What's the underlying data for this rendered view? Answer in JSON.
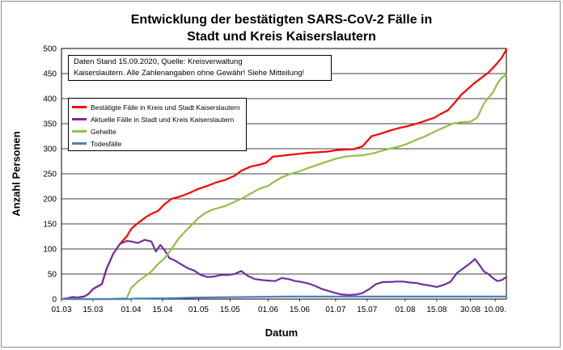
{
  "chart_data": {
    "type": "line",
    "title_line1": "Entwicklung der bestätigten SARS-CoV-2 Fälle in",
    "title_line2": "Stadt und Kreis Kaiserslautern",
    "xlabel": "Datum",
    "ylabel": "Anzahl Personen",
    "note_line1": "Daten Stand 15.09.2020, Quelle: Kreisverwaltung",
    "note_line2": "Kaiserslautern. Alle Zahlenangaben ohne Gewähr! Siehe Mitteilung!",
    "ylim": [
      0,
      500
    ],
    "yticks": [
      "0",
      "50",
      "100",
      "150",
      "200",
      "250",
      "300",
      "350",
      "400",
      "450",
      "500"
    ],
    "x_ticks": [
      {
        "label": "01.03",
        "day": 0
      },
      {
        "label": "15.03",
        "day": 14
      },
      {
        "label": "01.04",
        "day": 31
      },
      {
        "label": "15.04",
        "day": 45
      },
      {
        "label": "01.05",
        "day": 61
      },
      {
        "label": "15.05",
        "day": 75
      },
      {
        "label": "01.06",
        "day": 92
      },
      {
        "label": "15.06",
        "day": 106
      },
      {
        "label": "01.07",
        "day": 122
      },
      {
        "label": "15.07",
        "day": 136
      },
      {
        "label": "01.08",
        "day": 153
      },
      {
        "label": "15.08",
        "day": 167
      },
      {
        "label": "30.08",
        "day": 182
      },
      {
        "label": "10.09.",
        "day": 193
      }
    ],
    "x_days_max": 198,
    "grid": "horizontal",
    "legend_position": "top-left",
    "series": [
      {
        "name": "Bestätigte Fälle in Kreis und Stadt Kaiserslautern",
        "color": "#ff0000",
        "points": [
          [
            0,
            0
          ],
          [
            3,
            2
          ],
          [
            5,
            4
          ],
          [
            7,
            3
          ],
          [
            10,
            5
          ],
          [
            12,
            10
          ],
          [
            14,
            20
          ],
          [
            16,
            25
          ],
          [
            18,
            30
          ],
          [
            20,
            60
          ],
          [
            23,
            90
          ],
          [
            26,
            110
          ],
          [
            29,
            125
          ],
          [
            31,
            140
          ],
          [
            33,
            148
          ],
          [
            35,
            155
          ],
          [
            38,
            165
          ],
          [
            40,
            170
          ],
          [
            43,
            176
          ],
          [
            46,
            190
          ],
          [
            49,
            200
          ],
          [
            53,
            205
          ],
          [
            57,
            212
          ],
          [
            61,
            220
          ],
          [
            65,
            226
          ],
          [
            69,
            233
          ],
          [
            73,
            238
          ],
          [
            77,
            246
          ],
          [
            80,
            256
          ],
          [
            84,
            264
          ],
          [
            88,
            268
          ],
          [
            91,
            272
          ],
          [
            94,
            284
          ],
          [
            98,
            286
          ],
          [
            102,
            288
          ],
          [
            106,
            290
          ],
          [
            110,
            292
          ],
          [
            114,
            293
          ],
          [
            118,
            294
          ],
          [
            122,
            297
          ],
          [
            126,
            298
          ],
          [
            130,
            299
          ],
          [
            134,
            305
          ],
          [
            138,
            325
          ],
          [
            142,
            330
          ],
          [
            146,
            336
          ],
          [
            150,
            341
          ],
          [
            154,
            345
          ],
          [
            158,
            350
          ],
          [
            162,
            356
          ],
          [
            166,
            362
          ],
          [
            169,
            370
          ],
          [
            172,
            377
          ],
          [
            175,
            392
          ],
          [
            178,
            408
          ],
          [
            181,
            420
          ],
          [
            184,
            432
          ],
          [
            187,
            442
          ],
          [
            190,
            452
          ],
          [
            193,
            466
          ],
          [
            196,
            482
          ],
          [
            198,
            498
          ]
        ]
      },
      {
        "name": "Aktuelle Fälle in Stadt und Kreis Kaiserslautern",
        "color": "#7030a0",
        "points": [
          [
            0,
            0
          ],
          [
            3,
            2
          ],
          [
            5,
            4
          ],
          [
            7,
            3
          ],
          [
            10,
            5
          ],
          [
            12,
            10
          ],
          [
            14,
            20
          ],
          [
            16,
            25
          ],
          [
            18,
            30
          ],
          [
            20,
            60
          ],
          [
            23,
            90
          ],
          [
            26,
            110
          ],
          [
            29,
            116
          ],
          [
            31,
            115
          ],
          [
            34,
            112
          ],
          [
            37,
            118
          ],
          [
            40,
            115
          ],
          [
            42,
            95
          ],
          [
            44,
            108
          ],
          [
            46,
            97
          ],
          [
            48,
            82
          ],
          [
            50,
            78
          ],
          [
            53,
            70
          ],
          [
            56,
            62
          ],
          [
            59,
            57
          ],
          [
            62,
            48
          ],
          [
            65,
            44
          ],
          [
            68,
            45
          ],
          [
            71,
            48
          ],
          [
            74,
            48
          ],
          [
            77,
            50
          ],
          [
            80,
            56
          ],
          [
            83,
            46
          ],
          [
            86,
            40
          ],
          [
            89,
            38
          ],
          [
            92,
            37
          ],
          [
            95,
            36
          ],
          [
            98,
            42
          ],
          [
            101,
            40
          ],
          [
            104,
            36
          ],
          [
            107,
            34
          ],
          [
            110,
            31
          ],
          [
            113,
            26
          ],
          [
            116,
            20
          ],
          [
            119,
            16
          ],
          [
            122,
            12
          ],
          [
            125,
            9
          ],
          [
            128,
            8
          ],
          [
            131,
            9
          ],
          [
            134,
            12
          ],
          [
            137,
            20
          ],
          [
            140,
            30
          ],
          [
            143,
            34
          ],
          [
            146,
            34
          ],
          [
            149,
            35
          ],
          [
            152,
            35
          ],
          [
            155,
            33
          ],
          [
            158,
            32
          ],
          [
            161,
            29
          ],
          [
            164,
            27
          ],
          [
            167,
            24
          ],
          [
            170,
            28
          ],
          [
            173,
            34
          ],
          [
            176,
            52
          ],
          [
            179,
            62
          ],
          [
            182,
            72
          ],
          [
            184,
            80
          ],
          [
            186,
            68
          ],
          [
            188,
            55
          ],
          [
            190,
            50
          ],
          [
            192,
            42
          ],
          [
            194,
            36
          ],
          [
            196,
            38
          ],
          [
            198,
            44
          ]
        ]
      },
      {
        "name": "Geheilte",
        "color": "#92c047",
        "points": [
          [
            0,
            0
          ],
          [
            20,
            0
          ],
          [
            29,
            2
          ],
          [
            31,
            22
          ],
          [
            34,
            35
          ],
          [
            37,
            45
          ],
          [
            40,
            55
          ],
          [
            43,
            70
          ],
          [
            46,
            82
          ],
          [
            49,
            100
          ],
          [
            52,
            120
          ],
          [
            55,
            135
          ],
          [
            58,
            148
          ],
          [
            61,
            162
          ],
          [
            64,
            172
          ],
          [
            67,
            178
          ],
          [
            70,
            182
          ],
          [
            73,
            186
          ],
          [
            76,
            192
          ],
          [
            80,
            200
          ],
          [
            84,
            210
          ],
          [
            88,
            220
          ],
          [
            92,
            226
          ],
          [
            95,
            235
          ],
          [
            98,
            243
          ],
          [
            102,
            250
          ],
          [
            106,
            255
          ],
          [
            110,
            262
          ],
          [
            114,
            268
          ],
          [
            118,
            274
          ],
          [
            122,
            280
          ],
          [
            126,
            284
          ],
          [
            130,
            286
          ],
          [
            134,
            287
          ],
          [
            138,
            290
          ],
          [
            142,
            295
          ],
          [
            146,
            300
          ],
          [
            150,
            304
          ],
          [
            154,
            310
          ],
          [
            158,
            318
          ],
          [
            162,
            325
          ],
          [
            166,
            334
          ],
          [
            170,
            342
          ],
          [
            174,
            350
          ],
          [
            178,
            353
          ],
          [
            182,
            354
          ],
          [
            185,
            362
          ],
          [
            188,
            390
          ],
          [
            190,
            402
          ],
          [
            192,
            412
          ],
          [
            194,
            430
          ],
          [
            196,
            442
          ],
          [
            198,
            448
          ]
        ]
      },
      {
        "name": "Todesfälle",
        "color": "#4f81bd",
        "points": [
          [
            0,
            0
          ],
          [
            30,
            0
          ],
          [
            32,
            1
          ],
          [
            50,
            2
          ],
          [
            60,
            3
          ],
          [
            80,
            4
          ],
          [
            100,
            5
          ],
          [
            198,
            5
          ]
        ]
      }
    ]
  }
}
